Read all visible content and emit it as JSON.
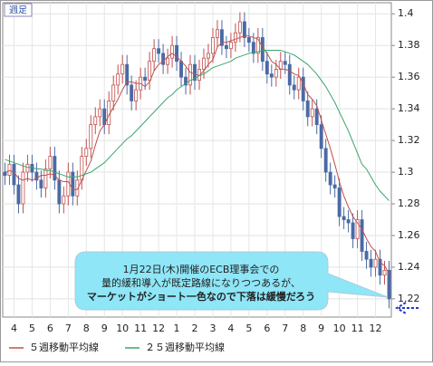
{
  "chart_data": {
    "type": "candlestick",
    "period_label": "週足",
    "categories": [
      null,
      null,
      "4",
      null,
      null,
      null,
      "5",
      null,
      null,
      null,
      "6",
      null,
      null,
      null,
      "7",
      null,
      null,
      null,
      "8",
      null,
      null,
      null,
      "9",
      null,
      null,
      null,
      "10",
      null,
      null,
      null,
      "11",
      null,
      null,
      null,
      "12",
      null,
      null,
      null,
      "1",
      null,
      null,
      null,
      "2",
      null,
      null,
      null,
      "3",
      null,
      null,
      null,
      "4",
      null,
      null,
      null,
      "5",
      null,
      null,
      null,
      "6",
      null,
      null,
      null,
      "7",
      null,
      null,
      null,
      "8",
      null,
      null,
      null,
      "9",
      null,
      null,
      null,
      "10",
      null,
      null,
      null,
      "11",
      null,
      null,
      null,
      "12",
      null,
      null,
      null
    ],
    "open": [
      1.3,
      1.298,
      1.305,
      1.292,
      1.28,
      1.3,
      1.305,
      1.3,
      1.295,
      1.29,
      1.302,
      1.31,
      1.295,
      1.28,
      1.285,
      1.3,
      1.285,
      1.295,
      1.31,
      1.315,
      1.33,
      1.335,
      1.34,
      1.33,
      1.345,
      1.355,
      1.362,
      1.368,
      1.355,
      1.345,
      1.352,
      1.36,
      1.358,
      1.37,
      1.378,
      1.375,
      1.368,
      1.372,
      1.38,
      1.37,
      1.36,
      1.355,
      1.368,
      1.358,
      1.365,
      1.372,
      1.375,
      1.385,
      1.39,
      1.38,
      1.378,
      1.382,
      1.388,
      1.395,
      1.385,
      1.382,
      1.375,
      1.385,
      1.37,
      1.362,
      1.36,
      1.365,
      1.37,
      1.368,
      1.355,
      1.352,
      1.36,
      1.345,
      1.335,
      1.34,
      1.33,
      1.315,
      1.3,
      1.292,
      1.29,
      1.272,
      1.27,
      1.268,
      1.258,
      1.27,
      1.25,
      1.245,
      1.24,
      1.245,
      1.235,
      1.238
    ],
    "high": [
      1.306,
      1.311,
      1.311,
      1.298,
      1.306,
      1.311,
      1.311,
      1.306,
      1.301,
      1.308,
      1.316,
      1.316,
      1.301,
      1.291,
      1.306,
      1.306,
      1.301,
      1.316,
      1.321,
      1.336,
      1.341,
      1.346,
      1.346,
      1.351,
      1.361,
      1.368,
      1.374,
      1.374,
      1.361,
      1.358,
      1.366,
      1.366,
      1.376,
      1.384,
      1.384,
      1.381,
      1.378,
      1.386,
      1.386,
      1.376,
      1.366,
      1.374,
      1.374,
      1.371,
      1.378,
      1.381,
      1.391,
      1.396,
      1.396,
      1.386,
      1.388,
      1.394,
      1.401,
      1.401,
      1.391,
      1.388,
      1.391,
      1.391,
      1.376,
      1.368,
      1.371,
      1.376,
      1.376,
      1.374,
      1.361,
      1.366,
      1.366,
      1.351,
      1.346,
      1.346,
      1.336,
      1.321,
      1.306,
      1.298,
      1.296,
      1.278,
      1.276,
      1.274,
      1.276,
      1.276,
      1.256,
      1.251,
      1.251,
      1.251,
      1.244,
      1.244
    ],
    "low": [
      1.292,
      1.292,
      1.286,
      1.274,
      1.274,
      1.294,
      1.294,
      1.289,
      1.284,
      1.284,
      1.296,
      1.289,
      1.274,
      1.274,
      1.279,
      1.279,
      1.279,
      1.289,
      1.304,
      1.309,
      1.324,
      1.329,
      1.324,
      1.324,
      1.339,
      1.349,
      1.356,
      1.349,
      1.339,
      1.339,
      1.346,
      1.352,
      1.352,
      1.364,
      1.369,
      1.362,
      1.362,
      1.366,
      1.364,
      1.354,
      1.349,
      1.349,
      1.352,
      1.352,
      1.359,
      1.366,
      1.369,
      1.379,
      1.374,
      1.372,
      1.372,
      1.376,
      1.382,
      1.379,
      1.376,
      1.369,
      1.369,
      1.364,
      1.356,
      1.354,
      1.354,
      1.359,
      1.362,
      1.349,
      1.346,
      1.346,
      1.339,
      1.329,
      1.329,
      1.324,
      1.309,
      1.294,
      1.286,
      1.284,
      1.266,
      1.264,
      1.262,
      1.252,
      1.252,
      1.244,
      1.239,
      1.234,
      1.234,
      1.229,
      1.229,
      1.214
    ],
    "close": [
      1.298,
      1.305,
      1.292,
      1.28,
      1.3,
      1.305,
      1.3,
      1.295,
      1.29,
      1.302,
      1.31,
      1.295,
      1.28,
      1.285,
      1.3,
      1.285,
      1.295,
      1.31,
      1.315,
      1.33,
      1.335,
      1.34,
      1.33,
      1.345,
      1.355,
      1.362,
      1.368,
      1.355,
      1.345,
      1.352,
      1.36,
      1.358,
      1.37,
      1.378,
      1.375,
      1.368,
      1.372,
      1.38,
      1.37,
      1.36,
      1.355,
      1.368,
      1.358,
      1.365,
      1.372,
      1.375,
      1.385,
      1.39,
      1.38,
      1.378,
      1.382,
      1.388,
      1.395,
      1.385,
      1.382,
      1.375,
      1.385,
      1.37,
      1.362,
      1.36,
      1.365,
      1.37,
      1.368,
      1.355,
      1.352,
      1.36,
      1.345,
      1.335,
      1.34,
      1.33,
      1.315,
      1.3,
      1.292,
      1.29,
      1.272,
      1.27,
      1.268,
      1.258,
      1.27,
      1.25,
      1.245,
      1.24,
      1.245,
      1.235,
      1.238,
      1.22
    ],
    "up_color": "#c0504d",
    "down_color": "#4a6aa5",
    "series": [
      {
        "name": "５週移動平均線",
        "color": "#c0504d",
        "values": [
          1.3,
          1.301,
          1.3,
          1.296,
          1.295,
          1.296,
          1.295,
          1.296,
          1.298,
          1.298,
          1.299,
          1.298,
          1.295,
          1.294,
          1.294,
          1.289,
          1.289,
          1.295,
          1.301,
          1.307,
          1.317,
          1.326,
          1.33,
          1.336,
          1.341,
          1.346,
          1.352,
          1.357,
          1.357,
          1.356,
          1.356,
          1.354,
          1.357,
          1.364,
          1.368,
          1.37,
          1.373,
          1.375,
          1.373,
          1.37,
          1.367,
          1.363,
          1.362,
          1.361,
          1.364,
          1.368,
          1.371,
          1.379,
          1.382,
          1.382,
          1.383,
          1.384,
          1.385,
          1.386,
          1.386,
          1.385,
          1.384,
          1.379,
          1.375,
          1.37,
          1.368,
          1.365,
          1.365,
          1.364,
          1.362,
          1.361,
          1.356,
          1.349,
          1.346,
          1.342,
          1.333,
          1.324,
          1.315,
          1.305,
          1.294,
          1.285,
          1.278,
          1.272,
          1.268,
          1.264,
          1.258,
          1.253,
          1.25,
          1.243,
          1.241,
          1.236
        ]
      },
      {
        "name": "２５週移動平均線",
        "color": "#3aa66a",
        "values": [
          1.308,
          1.307,
          1.306,
          1.305,
          1.304,
          1.303,
          1.303,
          1.302,
          1.302,
          1.301,
          1.301,
          1.3,
          1.299,
          1.298,
          1.297,
          1.297,
          1.297,
          1.298,
          1.299,
          1.3,
          1.302,
          1.304,
          1.306,
          1.309,
          1.312,
          1.315,
          1.318,
          1.321,
          1.323,
          1.326,
          1.329,
          1.332,
          1.335,
          1.338,
          1.341,
          1.344,
          1.347,
          1.349,
          1.352,
          1.354,
          1.356,
          1.358,
          1.359,
          1.361,
          1.362,
          1.364,
          1.366,
          1.367,
          1.368,
          1.369,
          1.37,
          1.372,
          1.373,
          1.374,
          1.375,
          1.376,
          1.376,
          1.377,
          1.377,
          1.377,
          1.377,
          1.377,
          1.376,
          1.375,
          1.374,
          1.372,
          1.37,
          1.368,
          1.365,
          1.362,
          1.358,
          1.354,
          1.349,
          1.344,
          1.338,
          1.332,
          1.326,
          1.319,
          1.312,
          1.305,
          1.302,
          1.297,
          1.292,
          1.288,
          1.285,
          1.282
        ]
      }
    ],
    "ylim": [
      1.2085,
      1.407
    ],
    "yticks": [
      1.22,
      1.24,
      1.26,
      1.28,
      1.3,
      1.32,
      1.34,
      1.36,
      1.38,
      1.4
    ],
    "grid": true,
    "annotation": [
      "1月22日(木)開催のECB理事会での",
      "量的緩和導入が既定路線になりつつあるが、",
      "マーケットがショート一色なので下落は緩慢だろう"
    ]
  }
}
